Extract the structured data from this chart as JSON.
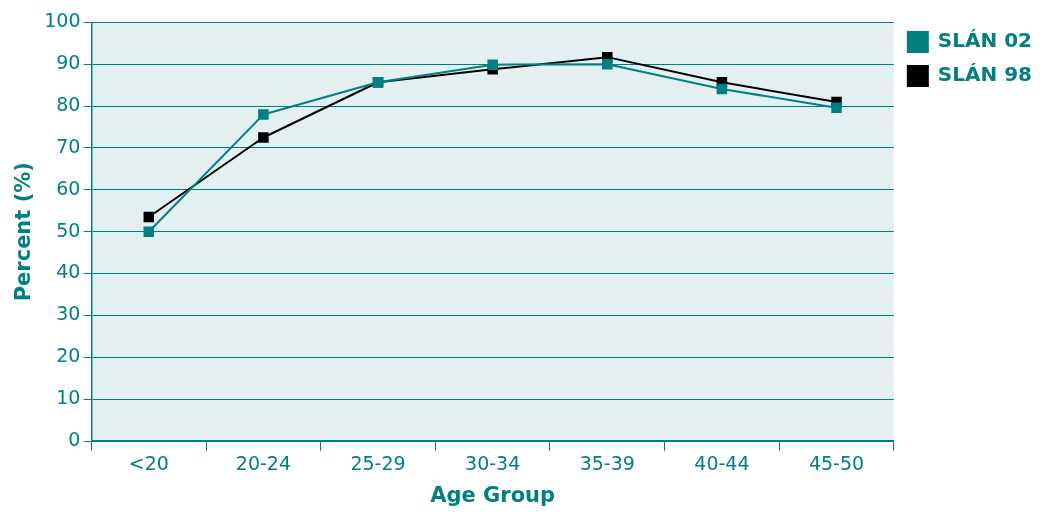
{
  "chart_data": {
    "type": "line",
    "xlabel": "Age Group",
    "ylabel": "Percent (%)",
    "categories": [
      "<20",
      "20-24",
      "25-29",
      "30-34",
      "35-39",
      "40-44",
      "45-50"
    ],
    "series": [
      {
        "name": "SLÁN 98",
        "color": "#000000",
        "values": [
          53.5,
          72.5,
          85.7,
          88.8,
          91.7,
          85.7,
          81
        ]
      },
      {
        "name": "SLÁN 02",
        "color": "#008080",
        "values": [
          50,
          78,
          85.7,
          89.9,
          90,
          84.1,
          79.6
        ]
      }
    ],
    "ylim": [
      0,
      100
    ],
    "yticks": [
      0,
      10,
      20,
      30,
      40,
      50,
      60,
      70,
      80,
      90,
      100
    ],
    "grid": "y",
    "legend": "top right",
    "marker": "square",
    "line_style": "solid"
  }
}
